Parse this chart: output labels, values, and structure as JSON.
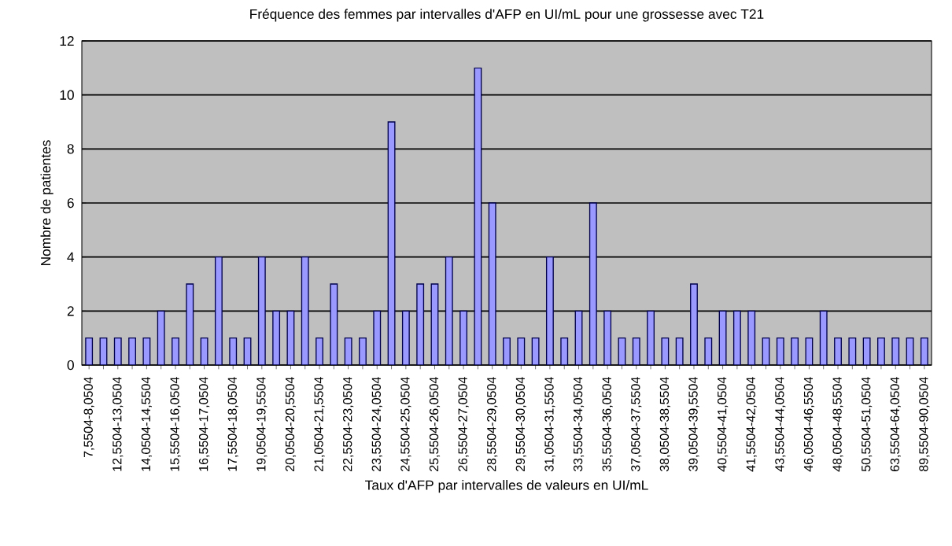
{
  "chart_data": {
    "type": "bar",
    "title": "Fréquence des femmes par intervalles d'AFP en UI/mL pour une grossesse avec T21",
    "xlabel": "Taux d'AFP par intervalles de valeurs  en UI/mL",
    "ylabel": "Nombre de patientes",
    "categories": [
      "7,5504-8,0504",
      null,
      "12,5504-13,0504",
      null,
      "14,0504-14,5504",
      null,
      "15,5504-16,0504",
      null,
      "16,5504-17,0504",
      null,
      "17,5504-18,0504",
      null,
      "19,0504-19,5504",
      null,
      "20,0504-20,5504",
      null,
      "21,0504-21,5504",
      null,
      "22,5504-23,0504",
      null,
      "23,5504-24,0504",
      null,
      "24,5504-25,0504",
      null,
      "25,5504-26,0504",
      null,
      "26,5504-27,0504",
      null,
      "28,5504-29,0504",
      null,
      "29,5504-30,0504",
      null,
      "31,0504-31,5504",
      null,
      "33,5504-34,0504",
      null,
      "35,5504-36,0504",
      null,
      "37,0504-37,5504",
      null,
      "38,0504-38,5504",
      null,
      "39,0504-39,5504",
      null,
      "40,5504-41,0504",
      null,
      "41,5504-42,0504",
      null,
      "43,5504-44,0504",
      null,
      "46,0504-46,5504",
      null,
      "48,0504-48,5504",
      null,
      "50,5504-51,0504",
      null,
      "63,5504-64,0504",
      null,
      "89,5504-90,0504"
    ],
    "values": [
      1,
      1,
      1,
      1,
      1,
      2,
      1,
      3,
      1,
      4,
      1,
      1,
      4,
      2,
      2,
      4,
      1,
      3,
      1,
      1,
      2,
      9,
      2,
      3,
      3,
      4,
      2,
      11,
      6,
      1,
      1,
      1,
      4,
      1,
      2,
      6,
      2,
      1,
      1,
      2,
      1,
      1,
      3,
      1,
      2,
      2,
      2,
      1,
      1,
      1,
      1,
      2,
      1,
      1,
      1,
      1,
      1,
      1,
      1
    ],
    "color": "#9999ff",
    "ylim": [
      0,
      12
    ],
    "yticks": [
      0,
      2,
      4,
      6,
      8,
      10,
      12
    ],
    "grid": "y"
  }
}
